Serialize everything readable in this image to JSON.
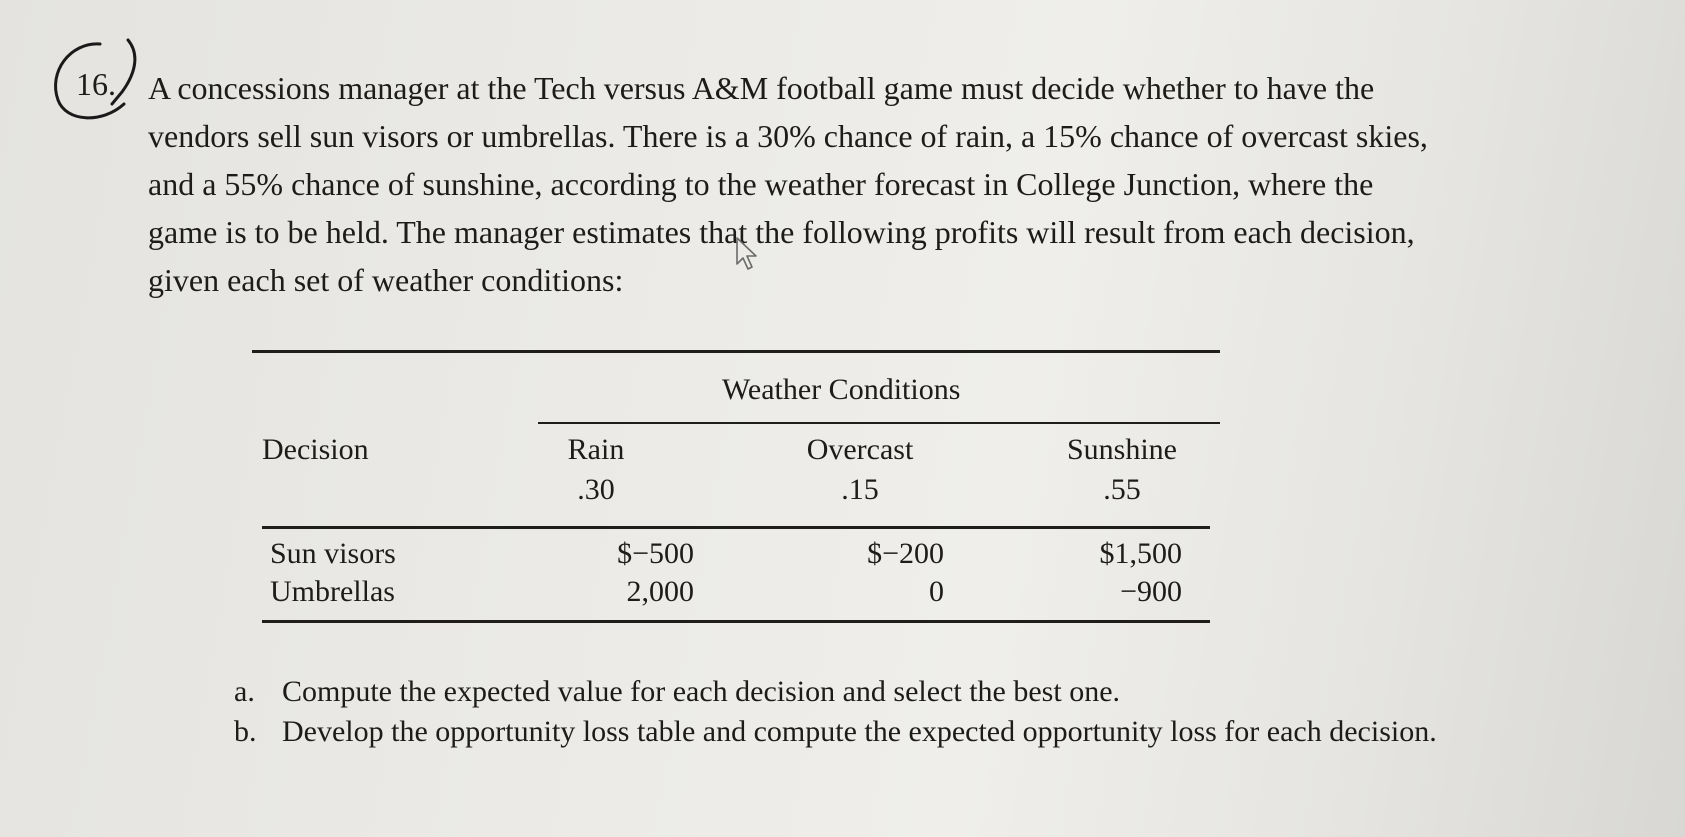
{
  "problem": {
    "number": "16.",
    "lines": [
      "A concessions manager at the Tech versus A&M football game must decide whether to have the",
      "vendors sell sun visors or umbrellas. There is a 30% chance of rain, a 15% chance of overcast skies,",
      "and a 55% chance of sunshine, according to the weather forecast in College Junction, where the",
      "game is to be held. The manager estimates that the following profits will result from each decision,",
      "given each set of weather conditions:"
    ]
  },
  "table": {
    "group_header": "Weather Conditions",
    "decision_header": "Decision",
    "columns": [
      {
        "name": "Rain",
        "prob": ".30"
      },
      {
        "name": "Overcast",
        "prob": ".15"
      },
      {
        "name": "Sunshine",
        "prob": ".55"
      }
    ],
    "rows": [
      {
        "label": "Sun visors",
        "values": [
          "$−500",
          "$−200",
          "$1,500"
        ]
      },
      {
        "label": "Umbrellas",
        "values": [
          "2,000",
          "0",
          "−900"
        ]
      }
    ]
  },
  "questions": [
    {
      "letter": "a.",
      "text": "Compute the expected value for each decision and select the best one."
    },
    {
      "letter": "b.",
      "text": "Develop the opportunity loss table and compute the expected opportunity loss for each decision."
    }
  ],
  "icons": {
    "cursor": "mouse-pointer-icon",
    "circle": "handwritten-circle-mark"
  }
}
